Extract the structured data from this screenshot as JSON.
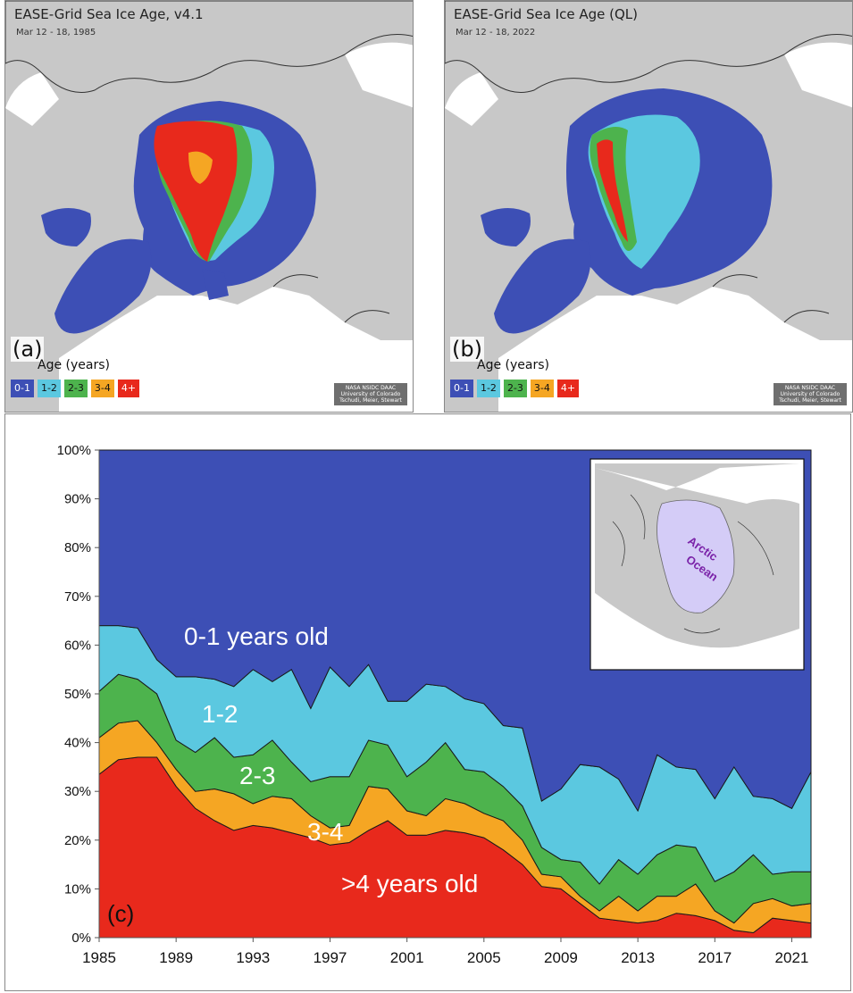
{
  "panel_a": {
    "title": "EASE-Grid Sea Ice Age, v4.1",
    "date": "Mar 12 - 18, 1985",
    "letter": "(a)",
    "legend_title": "Age (years)",
    "legend": [
      {
        "label": "0-1",
        "color": "#3d4fb5"
      },
      {
        "label": "1-2",
        "color": "#5bc8e0"
      },
      {
        "label": "2-3",
        "color": "#4db34d"
      },
      {
        "label": "3-4",
        "color": "#f5a623"
      },
      {
        "label": "4+",
        "color": "#e8291c"
      }
    ],
    "credit": [
      "NASA NSIDC DAAC",
      "University of Colorado",
      "Tschudi, Meier, Stewart"
    ]
  },
  "panel_b": {
    "title": "EASE-Grid Sea Ice Age (QL)",
    "date": "Mar 12 - 18, 2022",
    "letter": "(b)",
    "legend_title": "Age (years)",
    "legend": [
      {
        "label": "0-1",
        "color": "#3d4fb5"
      },
      {
        "label": "1-2",
        "color": "#5bc8e0"
      },
      {
        "label": "2-3",
        "color": "#4db34d"
      },
      {
        "label": "3-4",
        "color": "#f5a623"
      },
      {
        "label": "4+",
        "color": "#e8291c"
      }
    ],
    "credit": [
      "NASA NSIDC DAAC",
      "University of Colorado",
      "Tschudi, Meier, Stewart"
    ]
  },
  "panel_c": {
    "letter": "(c)",
    "inset_label_line1": "Arctic",
    "inset_label_line2": "Ocean"
  },
  "chart_data": {
    "type": "area",
    "stacked": true,
    "x": [
      1985,
      1986,
      1987,
      1988,
      1989,
      1990,
      1991,
      1992,
      1993,
      1994,
      1995,
      1996,
      1997,
      1998,
      1999,
      2000,
      2001,
      2002,
      2003,
      2004,
      2005,
      2006,
      2007,
      2008,
      2009,
      2010,
      2011,
      2012,
      2013,
      2014,
      2015,
      2016,
      2017,
      2018,
      2019,
      2020,
      2021,
      2022
    ],
    "ylim": [
      0,
      100
    ],
    "yticks": [
      "0%",
      "10%",
      "20%",
      "30%",
      "40%",
      "50%",
      "60%",
      "70%",
      "80%",
      "90%",
      "100%"
    ],
    "xticks": [
      "1985",
      "1989",
      "1993",
      "1997",
      "2001",
      "2005",
      "2009",
      "2013",
      "2017",
      "2021"
    ],
    "series": [
      {
        "name": ">4 years old",
        "color": "#e8291c",
        "values": [
          33.5,
          36.5,
          37.0,
          37.0,
          31.0,
          26.5,
          24.0,
          22.0,
          23.0,
          22.5,
          21.5,
          20.5,
          19.0,
          19.5,
          22.0,
          24.0,
          21.0,
          21.0,
          22.0,
          21.5,
          20.5,
          18.0,
          15.0,
          10.5,
          10.0,
          7.0,
          4.0,
          3.5,
          3.0,
          3.5,
          5.0,
          4.5,
          3.5,
          1.5,
          1.0,
          4.0,
          3.5,
          3.0
        ]
      },
      {
        "name": "3-4",
        "color": "#f5a623",
        "values": [
          7.5,
          7.5,
          7.5,
          3.0,
          3.5,
          3.5,
          6.5,
          7.5,
          4.5,
          6.5,
          7.0,
          4.5,
          3.5,
          3.5,
          9.0,
          6.5,
          5.0,
          4.0,
          6.5,
          6.0,
          5.0,
          6.0,
          5.0,
          2.5,
          2.5,
          1.5,
          1.5,
          5.0,
          2.5,
          5.0,
          3.5,
          6.5,
          2.0,
          1.5,
          6.0,
          4.0,
          3.0,
          4.0
        ]
      },
      {
        "name": "2-3",
        "color": "#4db34d",
        "values": [
          9.5,
          10.0,
          8.5,
          10.0,
          6.0,
          8.0,
          10.5,
          7.5,
          10.0,
          11.5,
          7.5,
          7.0,
          10.5,
          10.0,
          9.5,
          9.0,
          7.0,
          11.0,
          11.5,
          7.0,
          8.5,
          7.0,
          7.0,
          5.5,
          3.5,
          7.0,
          5.5,
          7.5,
          7.5,
          8.5,
          10.5,
          7.5,
          6.0,
          10.5,
          10.0,
          5.0,
          7.0,
          6.5
        ]
      },
      {
        "name": "1-2",
        "color": "#5bc8e0",
        "values": [
          13.5,
          10.0,
          10.5,
          7.0,
          13.0,
          15.5,
          12.0,
          14.5,
          17.5,
          12.0,
          19.0,
          15.0,
          22.5,
          18.5,
          15.5,
          9.0,
          15.5,
          16.0,
          11.5,
          14.5,
          14.0,
          12.5,
          16.0,
          9.5,
          14.5,
          20.0,
          24.0,
          16.5,
          13.0,
          20.5,
          16.0,
          16.0,
          17.0,
          21.5,
          12.0,
          15.5,
          13.0,
          20.5
        ]
      },
      {
        "name": "0-1 years old",
        "color": "#3d4fb5",
        "values": [
          36.0,
          36.0,
          36.5,
          43.0,
          46.5,
          46.5,
          47.0,
          48.5,
          45.0,
          47.5,
          45.0,
          53.0,
          44.5,
          48.5,
          44.0,
          51.5,
          51.5,
          48.0,
          48.5,
          51.0,
          52.0,
          56.5,
          57.0,
          72.0,
          69.5,
          64.5,
          65.0,
          67.5,
          74.0,
          62.5,
          65.0,
          65.5,
          71.5,
          65.0,
          71.0,
          71.5,
          73.5,
          66.0
        ]
      }
    ],
    "area_labels": {
      "young": "0-1 years old",
      "y1_2": "1-2",
      "y2_3": "2-3",
      "y3_4": "3-4",
      "old": ">4 years old"
    }
  }
}
